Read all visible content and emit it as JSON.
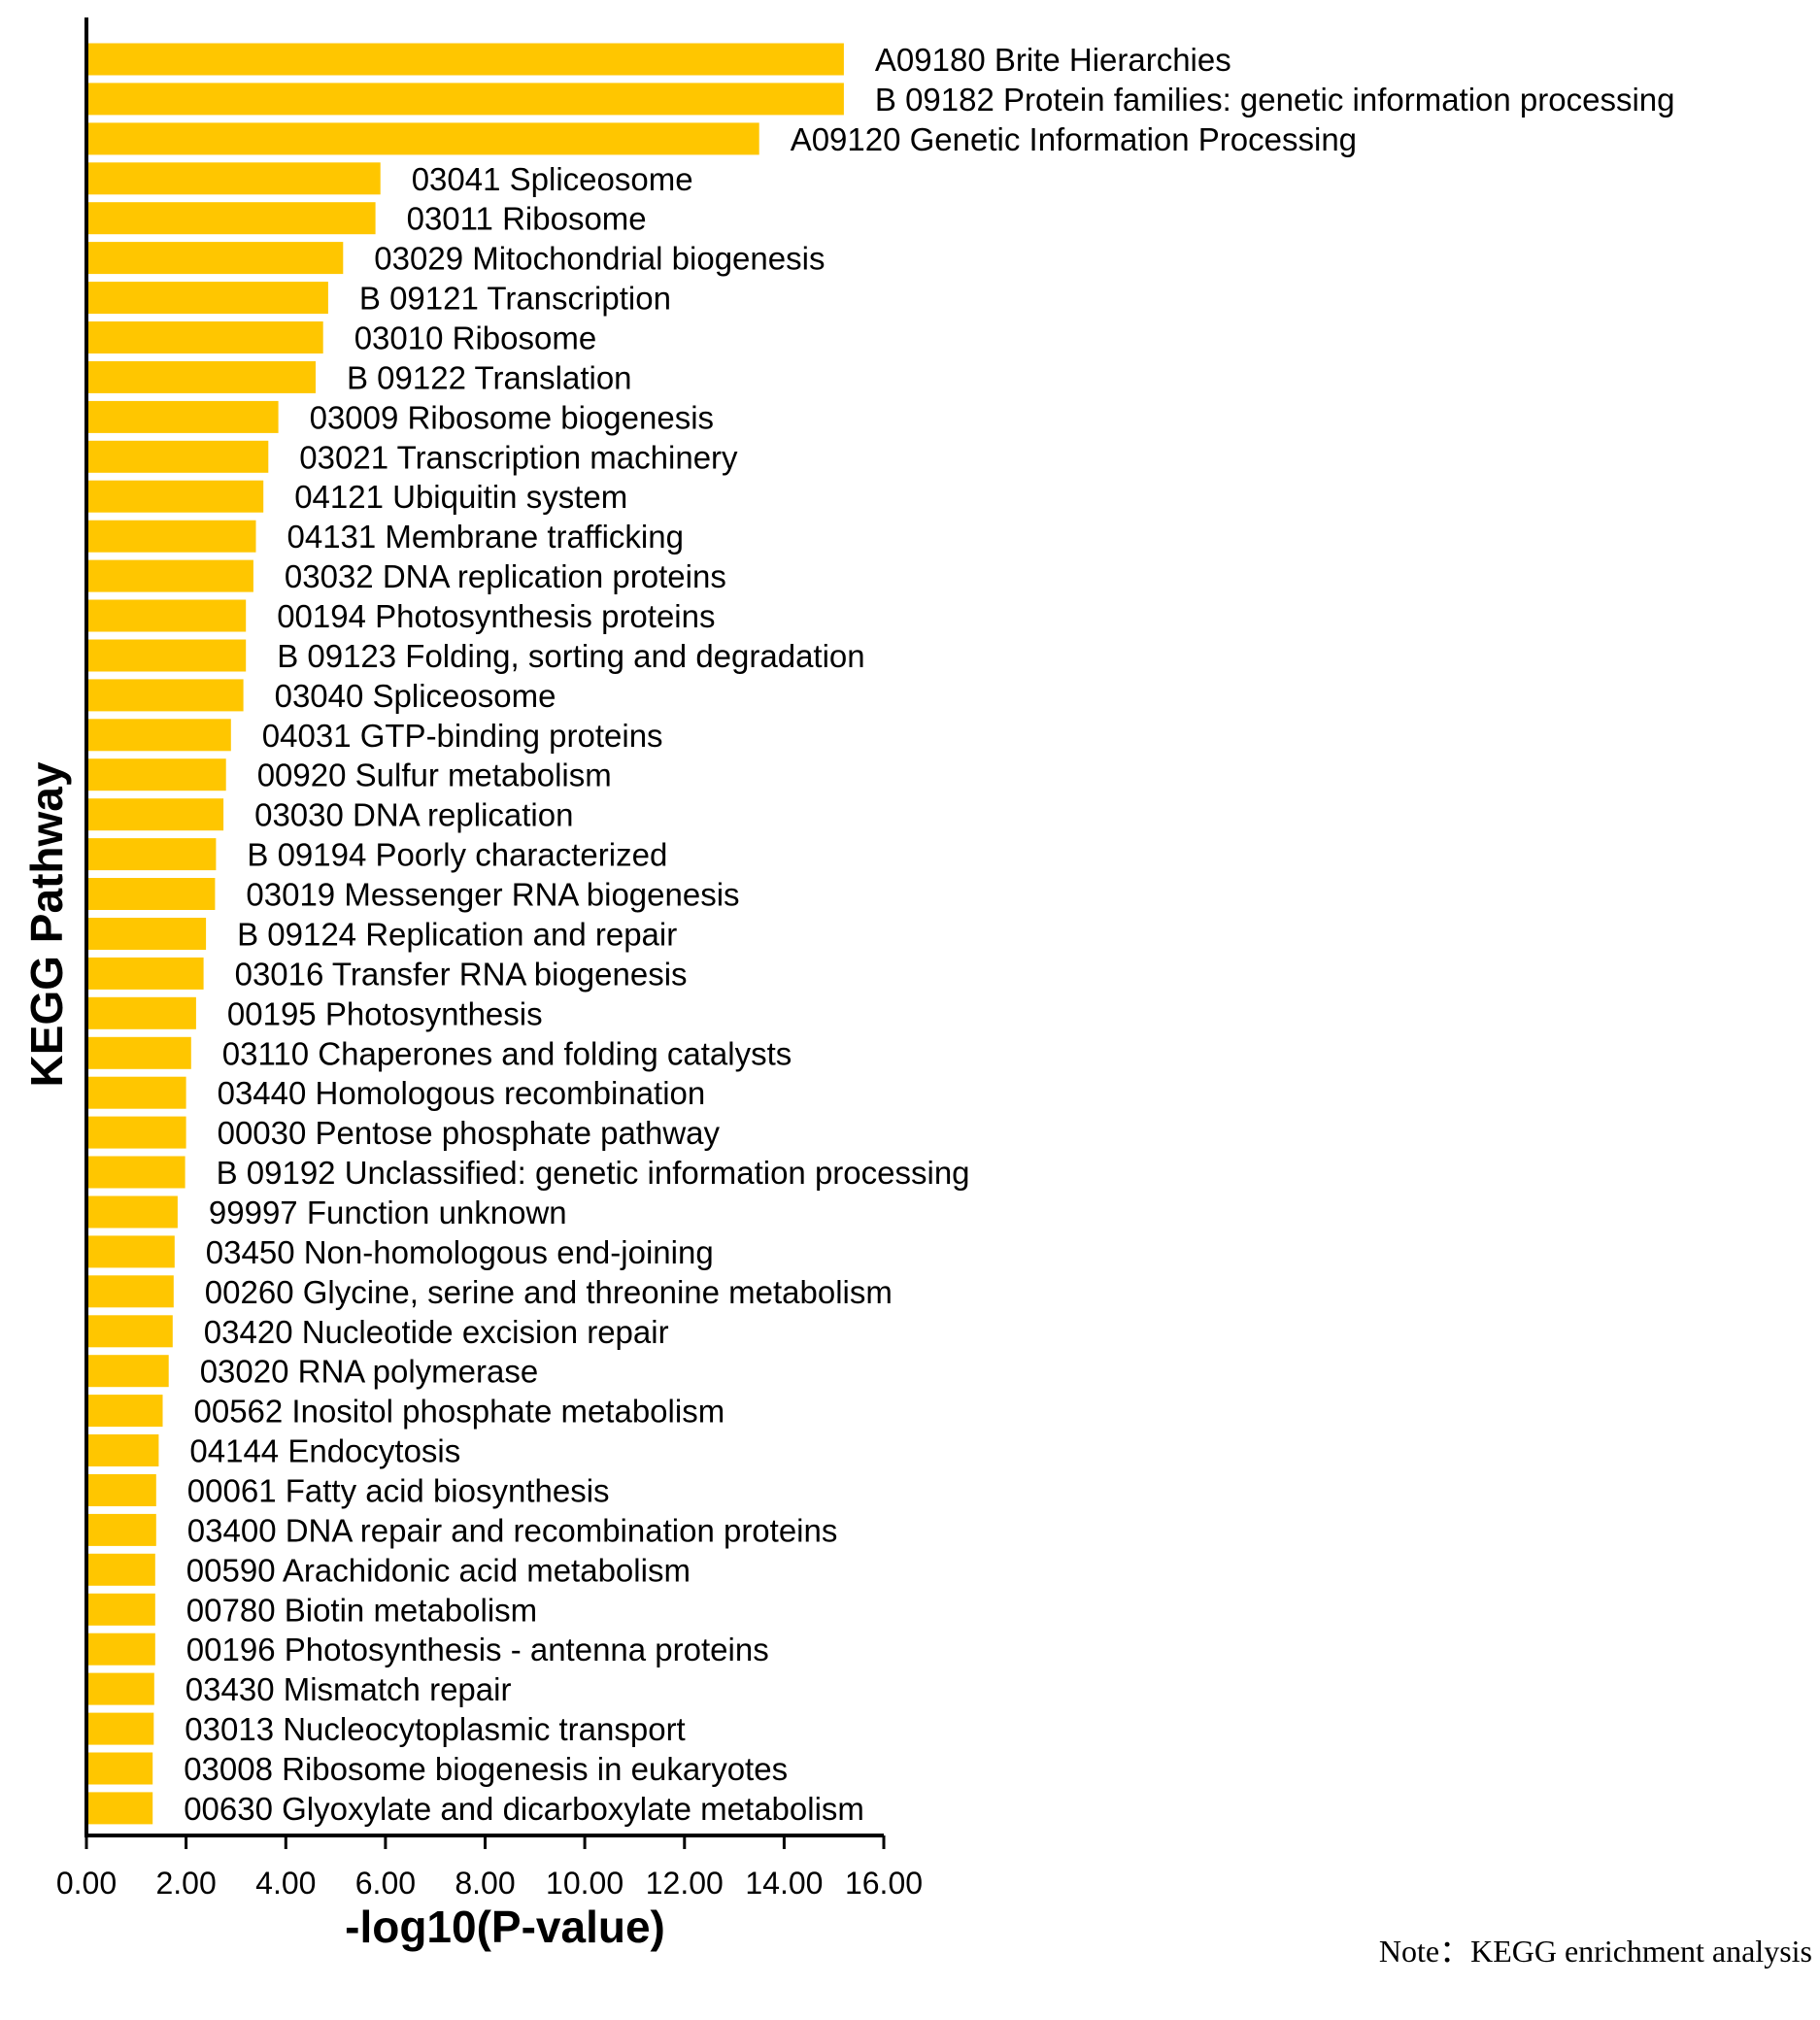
{
  "chart_data": {
    "type": "bar",
    "orientation": "horizontal",
    "bar_color": "#FFC600",
    "xlabel": "-log10(P-value)",
    "ylabel": "KEGG Pathway",
    "xlim": [
      0,
      16
    ],
    "xticks": [
      "0.00",
      "2.00",
      "4.00",
      "6.00",
      "8.00",
      "10.00",
      "12.00",
      "14.00",
      "16.00"
    ],
    "note": "Note：KEGG enrichment analysis",
    "categories": [
      "A09180 Brite Hierarchies",
      "B  09182 Protein families: genetic information processing",
      "A09120 Genetic Information Processing",
      "03041 Spliceosome",
      "03011 Ribosome",
      "03029 Mitochondrial biogenesis",
      "B  09121 Transcription",
      "03010 Ribosome",
      "B  09122 Translation",
      "03009 Ribosome biogenesis",
      "03021 Transcription machinery",
      "04121 Ubiquitin system",
      "04131 Membrane trafficking",
      "03032 DNA replication proteins",
      "00194 Photosynthesis proteins",
      "B  09123 Folding, sorting and degradation",
      "03040 Spliceosome",
      "04031 GTP-binding proteins",
      "00920 Sulfur metabolism",
      "03030 DNA replication",
      "B  09194 Poorly characterized",
      "03019 Messenger RNA biogenesis",
      "B  09124 Replication and repair",
      "03016 Transfer RNA biogenesis",
      "00195 Photosynthesis",
      "03110 Chaperones and folding catalysts",
      "03440 Homologous recombination",
      "00030 Pentose phosphate pathway",
      "B  09192 Unclassified: genetic information processing",
      "99997 Function unknown",
      "03450 Non-homologous end-joining",
      "00260 Glycine, serine and threonine metabolism",
      "03420 Nucleotide excision repair",
      "03020 RNA polymerase",
      "00562 Inositol phosphate metabolism",
      "04144 Endocytosis",
      "00061 Fatty acid biosynthesis",
      "03400 DNA repair and recombination proteins",
      "00590 Arachidonic acid metabolism",
      "00780 Biotin metabolism",
      "00196 Photosynthesis - antenna proteins",
      "03430 Mismatch repair",
      "03013 Nucleocytoplasmic transport",
      "03008 Ribosome biogenesis in eukaryotes",
      "00630 Glyoxylate and dicarboxylate metabolism"
    ],
    "values": [
      15.2,
      15.2,
      13.5,
      5.9,
      5.8,
      5.15,
      4.85,
      4.75,
      4.6,
      3.85,
      3.65,
      3.55,
      3.4,
      3.35,
      3.2,
      3.2,
      3.15,
      2.9,
      2.8,
      2.75,
      2.6,
      2.58,
      2.4,
      2.35,
      2.2,
      2.1,
      2.0,
      2.0,
      1.98,
      1.83,
      1.77,
      1.75,
      1.73,
      1.65,
      1.53,
      1.45,
      1.4,
      1.4,
      1.38,
      1.38,
      1.38,
      1.36,
      1.35,
      1.33,
      1.33
    ]
  }
}
